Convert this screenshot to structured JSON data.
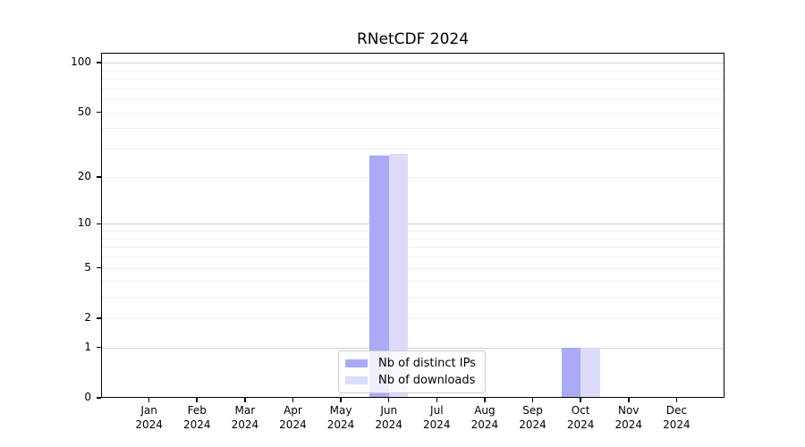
{
  "chart_data": {
    "type": "bar",
    "title": "RNetCDF 2024",
    "scale": "log1p",
    "ylim": [
      0,
      115
    ],
    "yticks": [
      0,
      1,
      2,
      5,
      10,
      20,
      50,
      100
    ],
    "gridlines": {
      "major": [
        1,
        10,
        100
      ],
      "minor": [
        2,
        3,
        4,
        5,
        6,
        7,
        8,
        9,
        20,
        30,
        40,
        50,
        60,
        70,
        80,
        90
      ]
    },
    "categories": [
      {
        "month": "Jan",
        "year": "2024"
      },
      {
        "month": "Feb",
        "year": "2024"
      },
      {
        "month": "Mar",
        "year": "2024"
      },
      {
        "month": "Apr",
        "year": "2024"
      },
      {
        "month": "May",
        "year": "2024"
      },
      {
        "month": "Jun",
        "year": "2024"
      },
      {
        "month": "Jul",
        "year": "2024"
      },
      {
        "month": "Aug",
        "year": "2024"
      },
      {
        "month": "Sep",
        "year": "2024"
      },
      {
        "month": "Oct",
        "year": "2024"
      },
      {
        "month": "Nov",
        "year": "2024"
      },
      {
        "month": "Dec",
        "year": "2024"
      }
    ],
    "series": [
      {
        "name": "Nb of distinct IPs",
        "color": "#aaaaf7",
        "values": [
          0,
          0,
          0,
          0,
          0,
          27,
          0,
          0,
          0,
          1,
          0,
          0
        ]
      },
      {
        "name": "Nb of downloads",
        "color": "#dcdcfa",
        "values": [
          0,
          0,
          0,
          0,
          0,
          28,
          0,
          0,
          0,
          1,
          0,
          0
        ]
      }
    ],
    "legend": {
      "position": "bottom-center"
    },
    "colors": {
      "grid_major": "#d2d2d2",
      "grid_minor": "#f0f0f0",
      "axis": "#000000",
      "background": "#ffffff"
    }
  }
}
